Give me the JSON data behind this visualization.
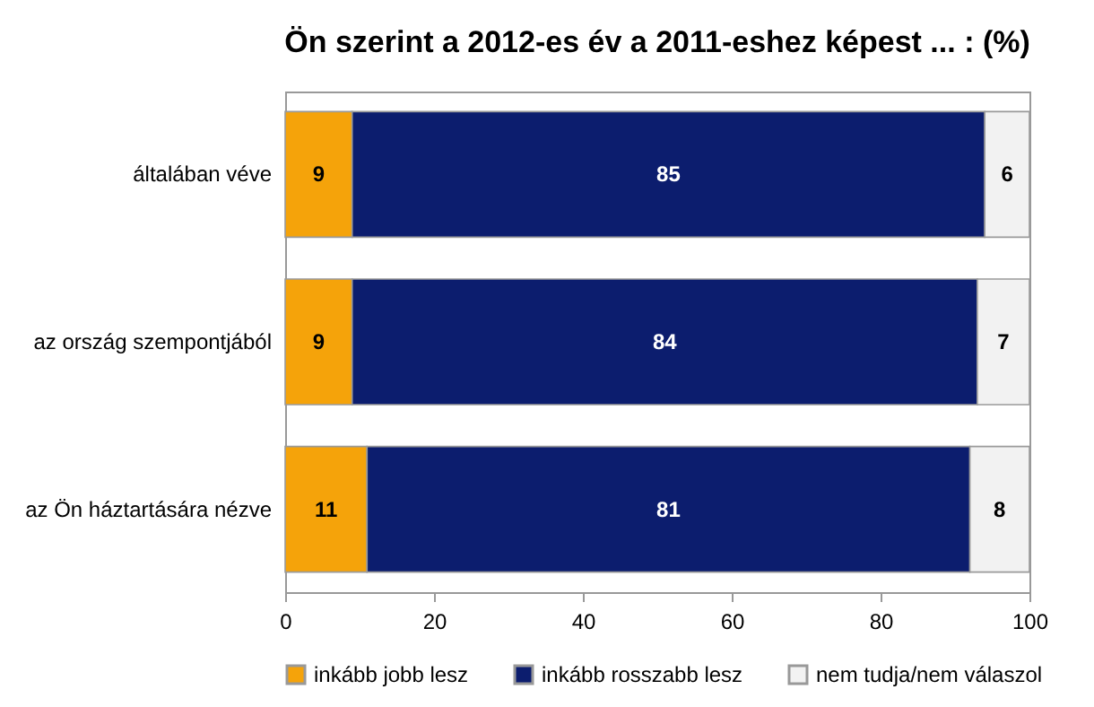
{
  "chart_data": {
    "type": "bar",
    "orientation": "horizontal",
    "stacked": true,
    "title": "Ön szerint  a 2012-es év a 2011-eshez képest ... : (%)",
    "categories": [
      "általában véve",
      "az ország szempontjából",
      "az Ön háztartására  nézve"
    ],
    "series": [
      {
        "name": "inkább jobb lesz",
        "color": "#f5a30a",
        "values": [
          9,
          9,
          11
        ]
      },
      {
        "name": "inkább rosszabb lesz",
        "color": "#0c1d6e",
        "values": [
          85,
          84,
          81
        ]
      },
      {
        "name": "nem tudja/nem válaszol",
        "color": "#f2f2f2",
        "values": [
          6,
          7,
          8
        ]
      }
    ],
    "xlim": [
      0,
      100
    ],
    "xticks": [
      0,
      20,
      40,
      60,
      80,
      100
    ],
    "data_labels": true,
    "legend": "bottom"
  }
}
